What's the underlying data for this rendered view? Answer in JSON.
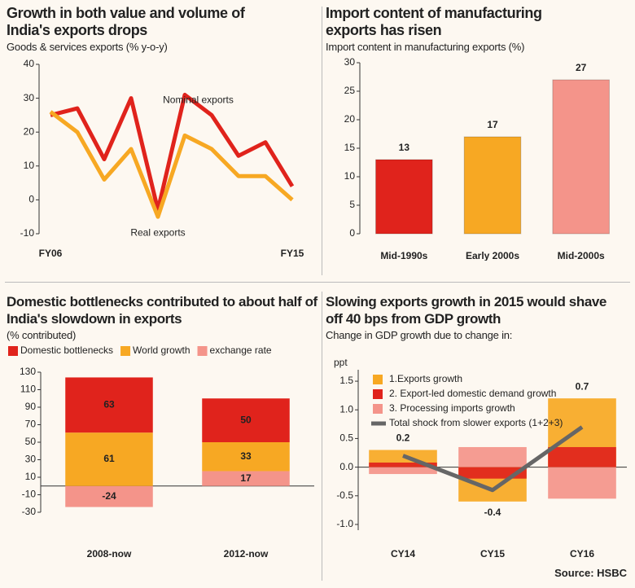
{
  "chart_data": [
    {
      "type": "line",
      "title": "Growth in both value and volume of India's exports drops",
      "subtitle": "Goods & services exports (% y-o-y)",
      "categories": [
        "FY06",
        null,
        null,
        null,
        null,
        null,
        null,
        null,
        null,
        "FY15"
      ],
      "series": [
        {
          "name": "Nominal exports",
          "color": "#e0231c",
          "values": [
            25,
            27,
            12,
            30,
            -3,
            31,
            25,
            13,
            17,
            4
          ]
        },
        {
          "name": "Real exports",
          "color": "#f7a823",
          "values": [
            26,
            20,
            6,
            15,
            -5,
            19,
            15,
            7,
            7,
            0
          ]
        }
      ],
      "ylim": [
        -10,
        40
      ],
      "yticks": [
        -10,
        0,
        10,
        20,
        30,
        40
      ]
    },
    {
      "type": "bar",
      "title": "Import content of manufacturing exports has risen",
      "subtitle": "Import content in manufacturing exports (%)",
      "categories": [
        "Mid-1990s",
        "Early 2000s",
        "Mid-2000s"
      ],
      "values": [
        13,
        17,
        27
      ],
      "colors": [
        "#e0231c",
        "#f7a823",
        "#f4948a"
      ],
      "ylim": [
        0,
        30
      ],
      "yticks": [
        0,
        5,
        10,
        15,
        20,
        25,
        30
      ]
    },
    {
      "type": "stacked_bar",
      "title": "Domestic bottlenecks contributed to about half of India's slowdown in exports",
      "subtitle": "(% contributed)",
      "categories": [
        "2008-now",
        "2012-now"
      ],
      "series": [
        {
          "name": "Domestic bottlenecks",
          "color": "#e0231c",
          "values": [
            63,
            50
          ]
        },
        {
          "name": "World growth",
          "color": "#f7a823",
          "values": [
            61,
            33
          ]
        },
        {
          "name": "exchange rate",
          "color": "#f4948a",
          "values": [
            -24,
            17
          ]
        }
      ],
      "ylim": [
        -30,
        130
      ],
      "yticks": [
        130,
        110,
        90,
        70,
        50,
        30,
        10,
        -10,
        -30
      ]
    },
    {
      "type": "bar_line",
      "title": "Slowing exports growth in 2015 would shave off 40 bps from GDP growth",
      "subtitle": "Change in GDP growth due to change in:",
      "ylabel": "ppt",
      "categories": [
        "CY14",
        "CY15",
        "CY16"
      ],
      "series": [
        {
          "name": "1.Exports growth",
          "color": "#f7a823",
          "values": [
            0.3,
            -0.6,
            1.2
          ]
        },
        {
          "name": "2. Export-led domestic demand growth",
          "color": "#e0231c",
          "values": [
            0.08,
            -0.2,
            0.35
          ]
        },
        {
          "name": "3. Processing imports growth",
          "color": "#f4948a",
          "values": [
            -0.12,
            0.35,
            -0.55
          ]
        },
        {
          "name": "Total shock from slower exports (1+2+3)",
          "type": "line",
          "color": "#666666",
          "values": [
            0.2,
            -0.4,
            0.7
          ]
        }
      ],
      "ylim": [
        -1.1,
        1.7
      ],
      "yticks": [
        {
          "value": -1,
          "label": "-1.0"
        },
        -0.5,
        {
          "value": 0,
          "label": "0.0"
        },
        0.5,
        {
          "value": 1,
          "label": "1.0"
        },
        1.5
      ]
    }
  ],
  "source": "Source: HSBC"
}
